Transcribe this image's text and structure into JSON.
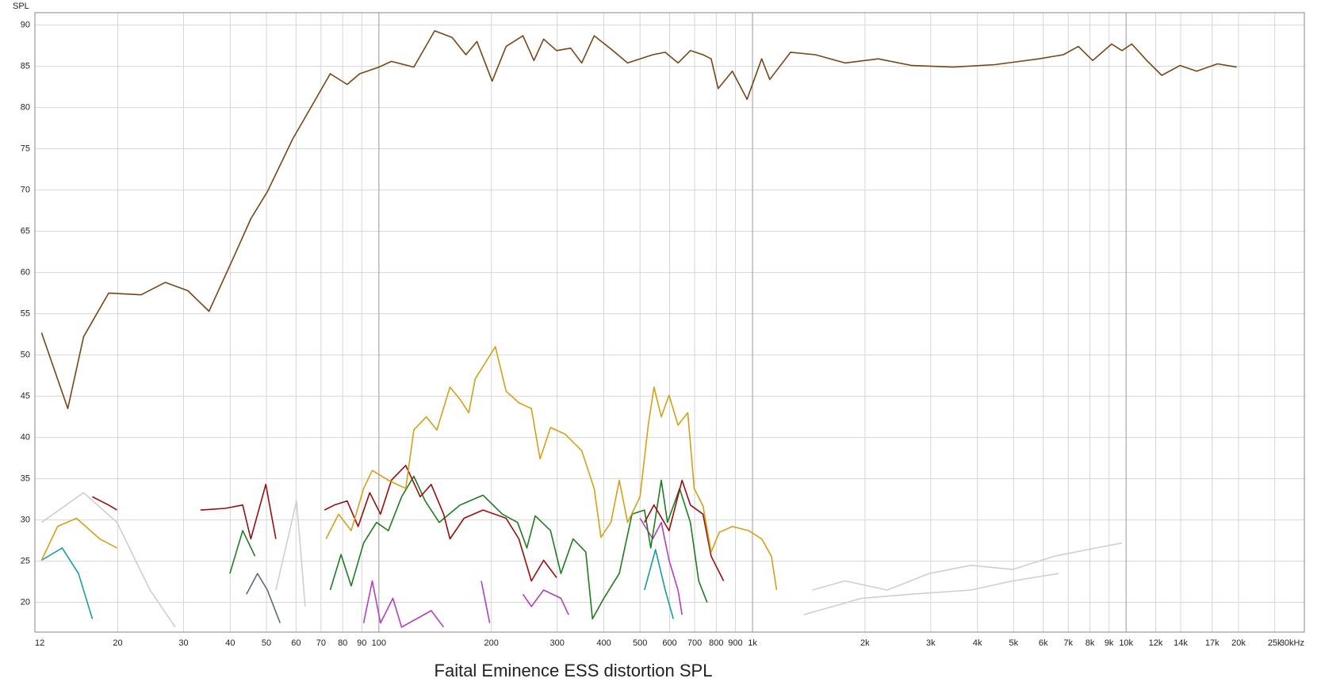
{
  "chart_data": {
    "type": "line",
    "title": "Faital Eminence ESS distortion SPL",
    "y_label": "SPL",
    "log_x": true,
    "grid": true,
    "xlim": [
      12,
      30000
    ],
    "ylim": [
      16.4,
      91.5
    ],
    "yticks": [
      20,
      25,
      30,
      35,
      40,
      45,
      50,
      55,
      60,
      65,
      70,
      75,
      80,
      85,
      90
    ],
    "xticks": [
      12,
      20,
      30,
      40,
      50,
      60,
      70,
      80,
      90,
      100,
      200,
      300,
      400,
      500,
      600,
      700,
      800,
      900,
      {
        "value": 1000,
        "label": "1k"
      },
      {
        "value": 2000,
        "label": "2k"
      },
      {
        "value": 3000,
        "label": "3k"
      },
      {
        "value": 4000,
        "label": "4k"
      },
      {
        "value": 5000,
        "label": "5k"
      },
      {
        "value": 6000,
        "label": "6k"
      },
      {
        "value": 7000,
        "label": "7k"
      },
      {
        "value": 8000,
        "label": "8k"
      },
      {
        "value": 9000,
        "label": "9k"
      },
      {
        "value": 10000,
        "label": "10k"
      },
      {
        "value": 12000,
        "label": "12k"
      },
      {
        "value": 14000,
        "label": "14k"
      },
      {
        "value": 17000,
        "label": "17k"
      },
      {
        "value": 20000,
        "label": "20k"
      },
      {
        "value": 25000,
        "label": "25k"
      },
      {
        "value": 30000,
        "label": "30kHz"
      }
    ],
    "series": [
      {
        "color": "#cfcfcf",
        "x": [
          12.5,
          16.2,
          19.9,
          24.4,
          28.5,
          null,
          53,
          60.2,
          63.5,
          null,
          1370,
          1960,
          2670,
          3842,
          4970,
          6590,
          null,
          1445,
          1769,
          2295,
          2971,
          3842,
          4970,
          6430,
          8320,
          9750
        ],
        "values": [
          29.7,
          33.3,
          29.7,
          21.5,
          17.0,
          null,
          21.5,
          32.3,
          19.5,
          null,
          18.5,
          20.5,
          21.0,
          21.5,
          22.6,
          23.5,
          null,
          21.5,
          22.6,
          21.5,
          23.5,
          24.5,
          24.0,
          25.6,
          26.6,
          27.2
        ]
      },
      {
        "color": "#5a6a80",
        "x": [
          44.2,
          47.3,
          50.3,
          54.4
        ],
        "values": [
          21.0,
          23.5,
          21.5,
          17.5
        ]
      },
      {
        "color": "#1a9aaa",
        "x": [
          12.5,
          14.2,
          15.7,
          17.1,
          null,
          514,
          550,
          584,
          614
        ],
        "values": [
          25.1,
          26.6,
          23.5,
          18.0,
          null,
          21.5,
          26.4,
          21.5,
          18.0
        ]
      },
      {
        "color": "#b040c0",
        "x": [
          91,
          96,
          101,
          109,
          115,
          138,
          149,
          null,
          188,
          198,
          null,
          243,
          256,
          276,
          307,
          322,
          null,
          500,
          541,
          570,
          598,
          632,
          648
        ],
        "values": [
          17.5,
          22.6,
          17.5,
          20.5,
          17.0,
          19.0,
          17.0,
          null,
          22.6,
          17.5,
          null,
          21.0,
          19.5,
          21.5,
          20.5,
          18.5,
          null,
          30.2,
          27.7,
          29.7,
          25.1,
          21.5,
          18.5
        ]
      },
      {
        "color": "#1e7d1e",
        "x": [
          39.9,
          43.2,
          46.6,
          null,
          74.1,
          79.2,
          84.3,
          91,
          98.5,
          106,
          115,
          124,
          133,
          145,
          165,
          190,
          214,
          235,
          249,
          262,
          288,
          307,
          331,
          358,
          373,
          400,
          440,
          476,
          514,
          534,
          570,
          592,
          638,
          682,
          718,
          756
        ],
        "values": [
          23.5,
          28.7,
          25.6,
          null,
          21.5,
          25.8,
          22.0,
          27.2,
          29.7,
          28.7,
          32.8,
          35.3,
          32.3,
          29.7,
          31.8,
          33.0,
          30.7,
          29.7,
          26.6,
          30.5,
          28.7,
          23.5,
          27.7,
          26.1,
          18.0,
          20.5,
          23.5,
          30.7,
          31.2,
          26.6,
          34.8,
          29.7,
          33.8,
          29.7,
          22.6,
          20.0
        ]
      },
      {
        "color": "#9b0d0d",
        "x": [
          17.1,
          18.9,
          19.9,
          null,
          33.3,
          38.8,
          43.2,
          45.4,
          49.8,
          53.0,
          null,
          71.5,
          76,
          82.2,
          88,
          94.5,
          101,
          108,
          118,
          129,
          138,
          149,
          155,
          169,
          190,
          219,
          237,
          256,
          276,
          299,
          null,
          514,
          545,
          598,
          648,
          682,
          737,
          775,
          837
        ],
        "values": [
          32.8,
          31.8,
          31.2,
          null,
          31.2,
          31.4,
          31.8,
          27.7,
          34.3,
          27.7,
          null,
          31.2,
          31.8,
          32.3,
          29.2,
          33.3,
          30.7,
          34.8,
          36.6,
          32.8,
          34.3,
          30.7,
          27.7,
          30.2,
          31.2,
          30.2,
          27.7,
          22.6,
          25.1,
          23.0,
          null,
          29.7,
          31.8,
          28.7,
          34.8,
          31.8,
          30.7,
          25.6,
          22.6
        ]
      },
      {
        "color": "#d4a017",
        "x": [
          12.5,
          13.8,
          15.5,
          17.9,
          19.9,
          null,
          72.2,
          78,
          84.3,
          91,
          96,
          106,
          118,
          124,
          134,
          143,
          155,
          165,
          174,
          181,
          190,
          205,
          219,
          237,
          256,
          270,
          288,
          315,
          349,
          377,
          393,
          418,
          440,
          463,
          500,
          526,
          545,
          570,
          598,
          632,
          671,
          698,
          737,
          775,
          815,
          883,
          976,
          1058,
          1124,
          1160
        ],
        "values": [
          25.1,
          29.2,
          30.2,
          27.7,
          26.6,
          null,
          27.7,
          30.7,
          28.7,
          33.8,
          36.0,
          34.8,
          33.8,
          40.9,
          42.5,
          40.9,
          46.1,
          44.6,
          43.0,
          47.1,
          48.6,
          51.0,
          45.6,
          44.2,
          43.5,
          37.4,
          41.2,
          40.4,
          38.4,
          33.8,
          27.9,
          29.7,
          34.8,
          29.7,
          32.8,
          41.5,
          46.1,
          42.5,
          45.1,
          41.5,
          43.0,
          33.8,
          31.7,
          26.1,
          28.5,
          29.2,
          28.7,
          27.7,
          25.6,
          21.5
        ]
      },
      {
        "color": "#7a4515",
        "x": [
          12.5,
          14.7,
          16.2,
          18.9,
          23.1,
          26.8,
          30.8,
          35.1,
          40.9,
          45.4,
          50.3,
          58.8,
          66.9,
          74.1,
          82.2,
          88.8,
          100,
          108,
          124,
          141,
          157,
          171,
          183,
          201,
          219,
          243,
          260,
          276,
          299,
          326,
          349,
          377,
          418,
          463,
          500,
          541,
          584,
          632,
          682,
          737,
          775,
          809,
          883,
          967,
          1058,
          1112,
          1264,
          1474,
          1769,
          2170,
          2669,
          3448,
          4457,
          5841,
          6791,
          7453,
          8140,
          9149,
          9745,
          10360,
          11360,
          12460,
          13940,
          15450,
          17560,
          19760
        ],
        "values": [
          52.7,
          43.5,
          52.2,
          57.5,
          57.3,
          58.8,
          57.8,
          55.3,
          61.9,
          66.5,
          69.8,
          76.2,
          80.6,
          84.1,
          82.8,
          84.1,
          84.9,
          85.6,
          84.9,
          89.3,
          88.5,
          86.4,
          88.0,
          83.2,
          87.4,
          88.7,
          85.7,
          88.3,
          86.9,
          87.2,
          85.4,
          88.7,
          87.1,
          85.4,
          85.9,
          86.4,
          86.7,
          85.4,
          86.9,
          86.4,
          85.9,
          82.3,
          84.4,
          81.0,
          85.9,
          83.4,
          86.7,
          86.4,
          85.4,
          85.9,
          85.1,
          84.9,
          85.2,
          85.9,
          86.4,
          87.4,
          85.7,
          87.7,
          86.9,
          87.7,
          85.7,
          83.9,
          85.1,
          84.4,
          85.3,
          84.9
        ]
      }
    ]
  }
}
